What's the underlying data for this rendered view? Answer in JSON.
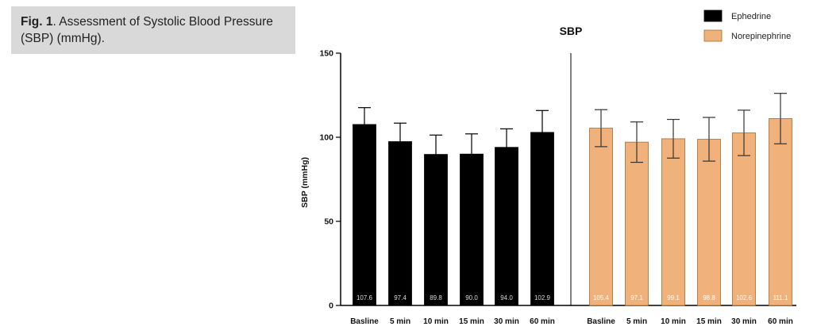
{
  "caption": {
    "label": "Fig. 1",
    "text": ". Assessment of Systolic Blood Pressure (SBP) (mmHg)."
  },
  "chart_data": {
    "type": "bar",
    "title": "SBP",
    "ylabel": "SBP (mmHg)",
    "xlabel": "",
    "ylim": [
      0,
      150
    ],
    "yticks": [
      0,
      50,
      100,
      150
    ],
    "grid": false,
    "legend_position": "top-right",
    "groups": [
      {
        "name": "Ephedrine",
        "color": "#000000",
        "categories": [
          "Basline",
          "5 min",
          "10 min",
          "15 min",
          "30 min",
          "60 min"
        ],
        "values": [
          107.6,
          97.4,
          89.8,
          90.0,
          94.0,
          102.9
        ],
        "value_labels": [
          "107.6",
          "97.4",
          "89.8",
          "90.0",
          "94.0",
          "102.9"
        ],
        "error": [
          10.0,
          11.0,
          11.5,
          12.0,
          11.0,
          13.0
        ]
      },
      {
        "name": "Norepinephrine",
        "color": "#f0b27a",
        "categories": [
          "Basline",
          "5 min",
          "10 min",
          "15 min",
          "30 min",
          "60 min"
        ],
        "values": [
          105.4,
          97.1,
          99.1,
          98.8,
          102.6,
          111.1
        ],
        "value_labels": [
          "105.4",
          "97.1",
          "99.1",
          "98.8",
          "102.6",
          "111.1"
        ],
        "error": [
          11.0,
          12.0,
          11.5,
          13.0,
          13.5,
          15.0
        ]
      }
    ]
  }
}
